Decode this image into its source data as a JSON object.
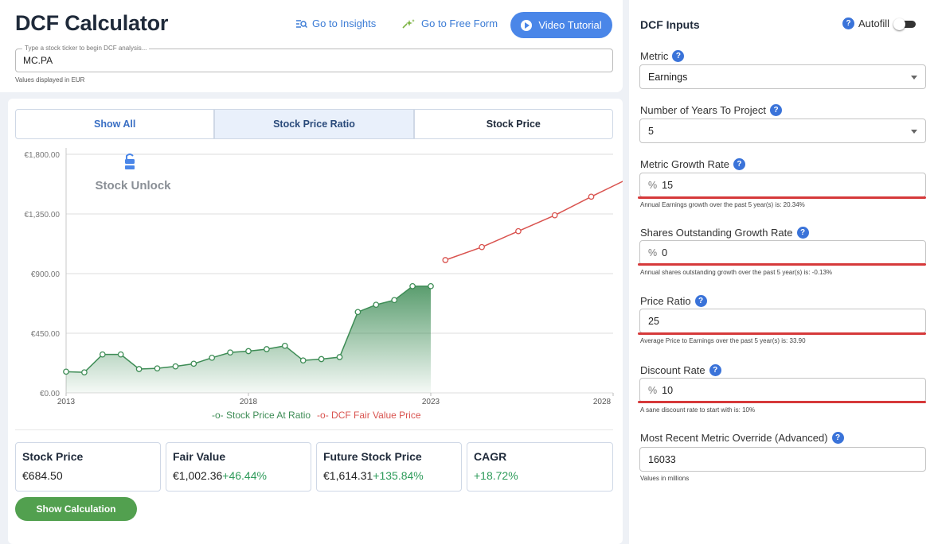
{
  "header": {
    "title": "DCF Calculator",
    "insights_label": "Go to Insights",
    "free_form_label": "Go to Free Form",
    "video_label": "Video Tutorial"
  },
  "ticker": {
    "placeholder": "Type a stock ticker to begin DCF analysis...",
    "value": "MC.PA",
    "currency_note": "Values displayed in EUR"
  },
  "tabs": [
    {
      "label": "Show All"
    },
    {
      "label": "Stock Price Ratio"
    },
    {
      "label": "Stock Price"
    }
  ],
  "watermark": "Stock Unlock",
  "chart_data": {
    "type": "line",
    "title": "",
    "xlabel": "",
    "ylabel": "",
    "xlim": [
      2013,
      2028
    ],
    "ylim": [
      0,
      1800
    ],
    "y_ticks": [
      "€1,800.00",
      "€1,350.00",
      "€900.00",
      "€450.00",
      "€0.00"
    ],
    "x_ticks": [
      "2013",
      "2018",
      "2023",
      "2028"
    ],
    "grid": true,
    "legend_position": "bottom",
    "series": [
      {
        "name": "Stock Price At Ratio",
        "color": "#3d8c55",
        "area": true,
        "x": [
          2013.0,
          2013.5,
          2014.0,
          2014.5,
          2015.0,
          2015.5,
          2016.0,
          2016.5,
          2017.0,
          2017.5,
          2018.0,
          2018.5,
          2019.0,
          2019.5,
          2020.0,
          2020.5,
          2021.0,
          2021.5,
          2022.0,
          2022.5,
          2023.0
        ],
        "y": [
          160,
          155,
          290,
          290,
          180,
          185,
          200,
          220,
          265,
          305,
          315,
          330,
          355,
          245,
          255,
          270,
          610,
          665,
          700,
          805,
          805
        ]
      },
      {
        "name": "DCF Fair Value Price",
        "color": "#d9534f",
        "area": false,
        "x": [
          2023.4,
          2024.4,
          2025.4,
          2026.4,
          2027.4,
          2028.4
        ],
        "y": [
          1002,
          1100,
          1220,
          1340,
          1480,
          1614
        ]
      }
    ]
  },
  "stats": [
    {
      "label": "Stock Price",
      "value": "€684.50",
      "change": ""
    },
    {
      "label": "Fair Value",
      "value": "€1,002.36",
      "change": "+46.44%"
    },
    {
      "label": "Future Stock Price",
      "value": "€1,614.31",
      "change": "+135.84%"
    },
    {
      "label": "CAGR",
      "value": "",
      "change": "+18.72%"
    }
  ],
  "show_calculation_label": "Show Calculation",
  "inputs": {
    "title": "DCF Inputs",
    "autofill_label": "Autofill",
    "metric": {
      "label": "Metric",
      "value": "Earnings"
    },
    "years": {
      "label": "Number of Years To Project",
      "value": "5"
    },
    "growth_rate": {
      "label": "Metric Growth Rate",
      "prefix": "%",
      "value": "15",
      "helper": "Annual Earnings growth over the past 5 year(s) is: 20.34%"
    },
    "shares_growth": {
      "label": "Shares Outstanding Growth Rate",
      "prefix": "%",
      "value": "0",
      "helper": "Annual shares outstanding growth over the past 5 year(s) is: -0.13%"
    },
    "price_ratio": {
      "label": "Price Ratio",
      "value": "25",
      "helper": "Average Price to Earnings over the past 5 year(s) is: 33.90"
    },
    "discount_rate": {
      "label": "Discount Rate",
      "prefix": "%",
      "value": "10",
      "helper": "A sane discount rate to start with is: 10%"
    },
    "override": {
      "label": "Most Recent Metric Override (Advanced)",
      "value": "16033",
      "helper": "Values in millions"
    }
  },
  "colors": {
    "accent": "#4a86e8",
    "green": "#3d8c55",
    "red": "#d9534f",
    "button_green": "#52a04f"
  }
}
